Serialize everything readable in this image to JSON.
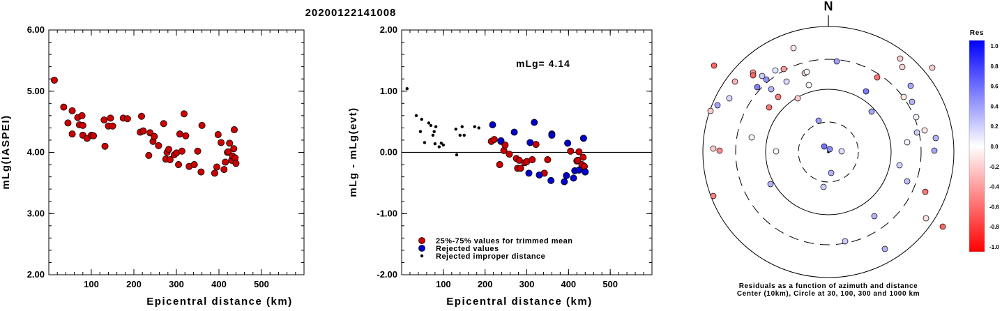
{
  "event_id": "20200122141008",
  "chart_data": [
    {
      "type": "scatter",
      "xlabel": "Epicentral distance (km)",
      "ylabel": "mLg(IASPEI)",
      "xlim": [
        0,
        600
      ],
      "ylim": [
        2.0,
        6.0
      ],
      "xticks": [
        "100",
        "200",
        "300",
        "400",
        "500"
      ],
      "yticks": [
        "2.00",
        "3.00",
        "4.00",
        "5.00",
        "6.00"
      ],
      "series": [
        {
          "color": "#cc0000",
          "points": [
            [
              13,
              5.18
            ],
            [
              35,
              4.74
            ],
            [
              45,
              4.48
            ],
            [
              55,
              4.3
            ],
            [
              55,
              4.68
            ],
            [
              68,
              4.57
            ],
            [
              72,
              4.45
            ],
            [
              78,
              4.6
            ],
            [
              80,
              4.44
            ],
            [
              80,
              4.28
            ],
            [
              90,
              4.23
            ],
            [
              100,
              4.28
            ],
            [
              105,
              4.27
            ],
            [
              130,
              4.53
            ],
            [
              132,
              4.1
            ],
            [
              140,
              4.43
            ],
            [
              145,
              4.56
            ],
            [
              150,
              4.43
            ],
            [
              175,
              4.56
            ],
            [
              185,
              4.55
            ],
            [
              215,
              4.33
            ],
            [
              218,
              4.59
            ],
            [
              222,
              4.35
            ],
            [
              235,
              3.95
            ],
            [
              238,
              4.32
            ],
            [
              245,
              4.18
            ],
            [
              248,
              4.26
            ],
            [
              258,
              4.11
            ],
            [
              270,
              4.47
            ],
            [
              275,
              3.89
            ],
            [
              278,
              4.0
            ],
            [
              282,
              4.05
            ],
            [
              285,
              3.88
            ],
            [
              295,
              3.96
            ],
            [
              300,
              3.99
            ],
            [
              305,
              3.8
            ],
            [
              308,
              4.3
            ],
            [
              313,
              4.02
            ],
            [
              318,
              4.63
            ],
            [
              322,
              4.27
            ],
            [
              330,
              3.77
            ],
            [
              342,
              3.8
            ],
            [
              350,
              4.02
            ],
            [
              358,
              3.68
            ],
            [
              360,
              4.44
            ],
            [
              390,
              3.66
            ],
            [
              395,
              3.76
            ],
            [
              398,
              4.29
            ],
            [
              405,
              4.16
            ],
            [
              412,
              3.72
            ],
            [
              415,
              3.84
            ],
            [
              420,
              4.0
            ],
            [
              422,
              4.01
            ],
            [
              425,
              4.15
            ],
            [
              430,
              3.87
            ],
            [
              432,
              3.94
            ],
            [
              435,
              4.06
            ],
            [
              436,
              4.37
            ],
            [
              438,
              3.91
            ],
            [
              440,
              3.82
            ]
          ]
        }
      ]
    },
    {
      "type": "scatter",
      "xlabel": "Epicentral distance (km)",
      "ylabel": "mLg - mLg(evt)",
      "xlim": [
        0,
        600
      ],
      "ylim": [
        -2.0,
        2.0
      ],
      "xticks": [
        "100",
        "200",
        "300",
        "400",
        "500"
      ],
      "yticks": [
        "-2.00",
        "-1.00",
        "0.00",
        "1.00",
        "2.00"
      ],
      "annotation": "mLg= 4.14",
      "legend": [
        "25%-75% values for trimmed mean",
        "Rejected values",
        "Rejected improper distance"
      ],
      "series": [
        {
          "name": "25%-75% values for trimmed mean",
          "color": "#cc0000",
          "points": [
            [
              215,
              0.18
            ],
            [
              222,
              0.21
            ],
            [
              235,
              -0.2
            ],
            [
              238,
              0.18
            ],
            [
              245,
              0.03
            ],
            [
              248,
              0.12
            ],
            [
              258,
              -0.03
            ],
            [
              275,
              -0.1
            ],
            [
              278,
              -0.26
            ],
            [
              282,
              -0.13
            ],
            [
              285,
              -0.26
            ],
            [
              295,
              -0.17
            ],
            [
              300,
              -0.15
            ],
            [
              313,
              -0.12
            ],
            [
              322,
              0.13
            ],
            [
              342,
              -0.34
            ],
            [
              350,
              -0.12
            ],
            [
              405,
              0.02
            ],
            [
              420,
              -0.14
            ],
            [
              422,
              -0.13
            ],
            [
              425,
              0.01
            ],
            [
              430,
              -0.27
            ],
            [
              432,
              -0.2
            ],
            [
              435,
              -0.08
            ],
            [
              438,
              -0.23
            ],
            [
              440,
              -0.32
            ]
          ]
        },
        {
          "name": "Rejected values",
          "color": "#0000cc",
          "points": [
            [
              218,
              0.45
            ],
            [
              238,
              0.19
            ],
            [
              270,
              0.33
            ],
            [
              305,
              -0.34
            ],
            [
              308,
              0.16
            ],
            [
              318,
              0.49
            ],
            [
              330,
              -0.37
            ],
            [
              358,
              -0.46
            ],
            [
              360,
              0.3
            ],
            [
              360,
              0.28
            ],
            [
              390,
              -0.48
            ],
            [
              395,
              -0.38
            ],
            [
              398,
              0.15
            ],
            [
              412,
              -0.42
            ],
            [
              415,
              -0.3
            ],
            [
              425,
              -0.29
            ],
            [
              436,
              0.23
            ],
            [
              440,
              -0.32
            ]
          ]
        },
        {
          "name": "Rejected improper distance",
          "color": "#000000",
          "points": [
            [
              13,
              1.04
            ],
            [
              35,
              0.6
            ],
            [
              45,
              0.34
            ],
            [
              48,
              0.54
            ],
            [
              55,
              0.16
            ],
            [
              65,
              0.48
            ],
            [
              70,
              0.44
            ],
            [
              75,
              0.28
            ],
            [
              78,
              0.34
            ],
            [
              80,
              0.14
            ],
            [
              82,
              0.42
            ],
            [
              90,
              0.09
            ],
            [
              95,
              0.15
            ],
            [
              100,
              0.12
            ],
            [
              130,
              0.38
            ],
            [
              132,
              -0.04
            ],
            [
              140,
              0.28
            ],
            [
              145,
              0.42
            ],
            [
              150,
              0.28
            ],
            [
              175,
              0.42
            ],
            [
              185,
              0.4
            ]
          ]
        }
      ]
    },
    {
      "type": "scatter",
      "title": "N",
      "caption": "Residuals as a function of azimuth and distance",
      "caption2": "Center (10km), Circle at 30, 100, 300 and 1000 km",
      "colorbar": {
        "label": "Res",
        "ticks": [
          "1.0",
          "0.8",
          "0.6",
          "0.4",
          "0.2",
          "0.0",
          "-0.2",
          "-0.4",
          "-0.6",
          "-0.8",
          "-1.0"
        ],
        "max_color": "#0000ff",
        "zero_color": "#ffffff",
        "min_color": "#ff0000"
      },
      "points": [
        [
          19,
          -1
        ],
        [
          2,
          -4
        ],
        [
          139,
          57
        ],
        [
          81,
          139
        ],
        [
          164,
          107
        ],
        [
          24,
          128
        ],
        [
          103,
          -134
        ],
        [
          106,
          -122
        ],
        [
          62,
          -58
        ],
        [
          -50,
          -149
        ],
        [
          -34,
          -113
        ],
        [
          -6,
          -8
        ],
        [
          70,
          -107
        ],
        [
          12,
          -130
        ],
        [
          120,
          -72
        ],
        [
          -108,
          -114
        ],
        [
          113,
          42
        ],
        [
          108,
          -79
        ],
        [
          -82,
          -90
        ],
        [
          -7,
          50
        ],
        [
          -164,
          -124
        ],
        [
          -60,
          -101
        ],
        [
          -110,
          -21
        ],
        [
          54,
          -87
        ],
        [
          -75,
          -1
        ],
        [
          4,
          30
        ],
        [
          -85,
          -64
        ],
        [
          66,
          92
        ],
        [
          -28,
          -96
        ],
        [
          -44,
          -77
        ],
        [
          -134,
          -101
        ],
        [
          127,
          -28
        ],
        [
          -72,
          -79
        ],
        [
          -89,
          -104
        ],
        [
          -14,
          -45
        ],
        [
          113,
          -14
        ],
        [
          -156,
          -2
        ],
        [
          154,
          -20
        ],
        [
          126,
          -50
        ],
        [
          -165,
          -5
        ],
        [
          152,
          -2
        ],
        [
          138,
          -31
        ],
        [
          -83,
          46
        ],
        [
          -76,
          -117
        ],
        [
          -159,
          -67
        ],
        [
          -64,
          -119
        ],
        [
          -169,
          -59
        ],
        [
          149,
          -121
        ],
        [
          -142,
          -77
        ],
        [
          -165,
          63
        ],
        [
          -95,
          -109
        ],
        [
          -108,
          -110
        ],
        [
          118,
          -95
        ],
        [
          140,
          95
        ],
        [
          -31,
          -115
        ],
        [
          -102,
          -93
        ],
        [
          102,
          19
        ]
      ],
      "residuals": [
        0.12,
        0.45,
        -0.55,
        0.3,
        -0.6,
        0.2,
        -0.2,
        -0.18,
        0.35,
        -0.1,
        -0.2,
        0.55,
        -0.55,
        0.38,
        0.3,
        -0.4,
        0.25,
        -0.1,
        0.3,
        0.2,
        -0.6,
        0.15,
        0.05,
        0.52,
        0.0,
        0.3,
        -0.55,
        0.3,
        0.0,
        -0.2,
        -0.3,
        0.2,
        -0.5,
        0.42,
        0.38,
        0.05,
        -0.45,
        0.3,
        0.05,
        -0.2,
        0.35,
        -0.1,
        0.3,
        0.1,
        0.35,
        -0.4,
        -0.2,
        -0.2,
        0.15,
        -0.5,
        0.2,
        -0.6,
        0.35,
        -0.12,
        0.05,
        0.5,
        0.18
      ]
    }
  ]
}
